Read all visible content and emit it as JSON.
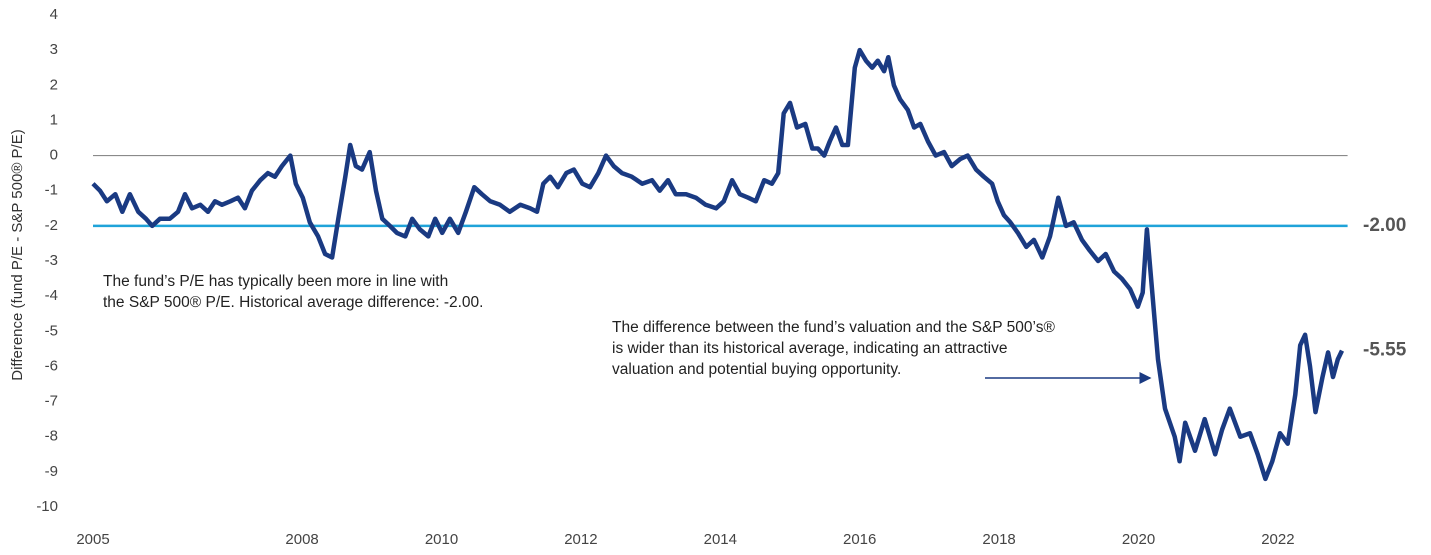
{
  "chart_data": {
    "type": "line",
    "y_axis_label": "Difference (fund P/E - S&P 500® P/E)",
    "xlim": [
      2005,
      2023
    ],
    "xticks": [
      2005,
      2008,
      2010,
      2012,
      2014,
      2016,
      2018,
      2020,
      2022
    ],
    "ylim": [
      -10,
      4
    ],
    "yticks": [
      4,
      3,
      2,
      1,
      0,
      -1,
      -2,
      -3,
      -4,
      -5,
      -6,
      -7,
      -8,
      -9,
      -10
    ],
    "zero_line": {
      "value": 0,
      "color": "#8a8a8a"
    },
    "average_line": {
      "value": -2,
      "label": "-2.00",
      "color": "#1fa3d9"
    },
    "annotations": [
      {
        "lines": [
          "The fund’s P/E has typically been more in line with",
          "the S&P 500® P/E. Historical average difference: -2.00."
        ]
      },
      {
        "lines": [
          "The difference between the fund’s valuation and the S&P 500’s®",
          "is wider than its historical average, indicating an attractive",
          "valuation and potential buying opportunity."
        ]
      }
    ],
    "x": [
      2005.0,
      2005.1,
      2005.2,
      2005.32,
      2005.42,
      2005.53,
      2005.65,
      2005.76,
      2005.85,
      2005.96,
      2006.1,
      2006.22,
      2006.32,
      2006.42,
      2006.54,
      2006.65,
      2006.75,
      2006.85,
      2006.97,
      2007.08,
      2007.18,
      2007.28,
      2007.4,
      2007.51,
      2007.61,
      2007.71,
      2007.83,
      2007.91,
      2008.01,
      2008.11,
      2008.23,
      2008.33,
      2008.43,
      2008.52,
      2008.62,
      2008.69,
      2008.77,
      2008.86,
      2008.97,
      2009.06,
      2009.15,
      2009.26,
      2009.36,
      2009.48,
      2009.58,
      2009.69,
      2009.81,
      2009.91,
      2010.01,
      2010.12,
      2010.24,
      2010.35,
      2010.47,
      2010.58,
      2010.7,
      2010.84,
      2010.98,
      2011.13,
      2011.27,
      2011.37,
      2011.46,
      2011.56,
      2011.67,
      2011.79,
      2011.9,
      2012.02,
      2012.13,
      2012.25,
      2012.36,
      2012.47,
      2012.59,
      2012.73,
      2012.88,
      2013.02,
      2013.13,
      2013.25,
      2013.36,
      2013.51,
      2013.65,
      2013.79,
      2013.94,
      2014.05,
      2014.17,
      2014.28,
      2014.4,
      2014.51,
      2014.63,
      2014.74,
      2014.83,
      2014.91,
      2015.0,
      2015.1,
      2015.22,
      2015.32,
      2015.4,
      2015.49,
      2015.57,
      2015.66,
      2015.75,
      2015.83,
      2015.93,
      2016.0,
      2016.09,
      2016.18,
      2016.26,
      2016.35,
      2016.41,
      2016.49,
      2016.58,
      2016.69,
      2016.78,
      2016.87,
      2016.98,
      2017.09,
      2017.21,
      2017.32,
      2017.44,
      2017.55,
      2017.67,
      2017.78,
      2017.9,
      2017.98,
      2018.07,
      2018.16,
      2018.27,
      2018.39,
      2018.5,
      2018.62,
      2018.73,
      2018.85,
      2018.96,
      2019.07,
      2019.19,
      2019.3,
      2019.42,
      2019.53,
      2019.65,
      2019.76,
      2019.88,
      2019.99,
      2020.06,
      2020.12,
      2020.28,
      2020.38,
      2020.52,
      2020.59,
      2020.67,
      2020.81,
      2020.95,
      2021.1,
      2021.2,
      2021.31,
      2021.46,
      2021.6,
      2021.71,
      2021.82,
      2021.92,
      2022.03,
      2022.14,
      2022.25,
      2022.32,
      2022.39,
      2022.46,
      2022.54,
      2022.64,
      2022.72,
      2022.79,
      2022.86,
      2022.92
    ],
    "series": [
      {
        "color": "#1a3a82",
        "end_label": "-5.55",
        "values": [
          -0.8,
          -1.0,
          -1.3,
          -1.1,
          -1.6,
          -1.1,
          -1.6,
          -1.8,
          -2.0,
          -1.8,
          -1.8,
          -1.6,
          -1.1,
          -1.5,
          -1.4,
          -1.6,
          -1.3,
          -1.4,
          -1.3,
          -1.2,
          -1.5,
          -1.0,
          -0.7,
          -0.5,
          -0.6,
          -0.3,
          0.0,
          -0.8,
          -1.2,
          -1.9,
          -2.3,
          -2.8,
          -2.9,
          -1.8,
          -0.6,
          0.3,
          -0.3,
          -0.4,
          0.1,
          -1.0,
          -1.8,
          -2.0,
          -2.2,
          -2.3,
          -1.8,
          -2.1,
          -2.3,
          -1.8,
          -2.2,
          -1.8,
          -2.2,
          -1.6,
          -0.9,
          -1.1,
          -1.3,
          -1.4,
          -1.6,
          -1.4,
          -1.5,
          -1.6,
          -0.8,
          -0.6,
          -0.9,
          -0.5,
          -0.4,
          -0.8,
          -0.9,
          -0.5,
          0.0,
          -0.3,
          -0.5,
          -0.6,
          -0.8,
          -0.7,
          -1.0,
          -0.7,
          -1.1,
          -1.1,
          -1.2,
          -1.4,
          -1.5,
          -1.3,
          -0.7,
          -1.1,
          -1.2,
          -1.3,
          -0.7,
          -0.8,
          -0.5,
          1.2,
          1.5,
          0.8,
          0.9,
          0.2,
          0.2,
          0.0,
          0.4,
          0.8,
          0.3,
          0.3,
          2.5,
          3.0,
          2.7,
          2.5,
          2.7,
          2.4,
          2.8,
          2.0,
          1.6,
          1.3,
          0.8,
          0.9,
          0.4,
          0.0,
          0.1,
          -0.3,
          -0.1,
          0.0,
          -0.4,
          -0.6,
          -0.8,
          -1.3,
          -1.7,
          -1.9,
          -2.2,
          -2.6,
          -2.4,
          -2.9,
          -2.3,
          -1.2,
          -2.0,
          -1.9,
          -2.4,
          -2.7,
          -3.0,
          -2.8,
          -3.3,
          -3.5,
          -3.8,
          -4.3,
          -3.9,
          -2.1,
          -5.8,
          -7.2,
          -8.0,
          -8.7,
          -7.6,
          -8.4,
          -7.5,
          -8.5,
          -7.8,
          -7.2,
          -8.0,
          -7.9,
          -8.5,
          -9.2,
          -8.7,
          -7.9,
          -8.2,
          -6.8,
          -5.4,
          -5.1,
          -6.0,
          -7.3,
          -6.3,
          -5.6,
          -6.3,
          -5.8,
          -5.55
        ]
      }
    ]
  }
}
